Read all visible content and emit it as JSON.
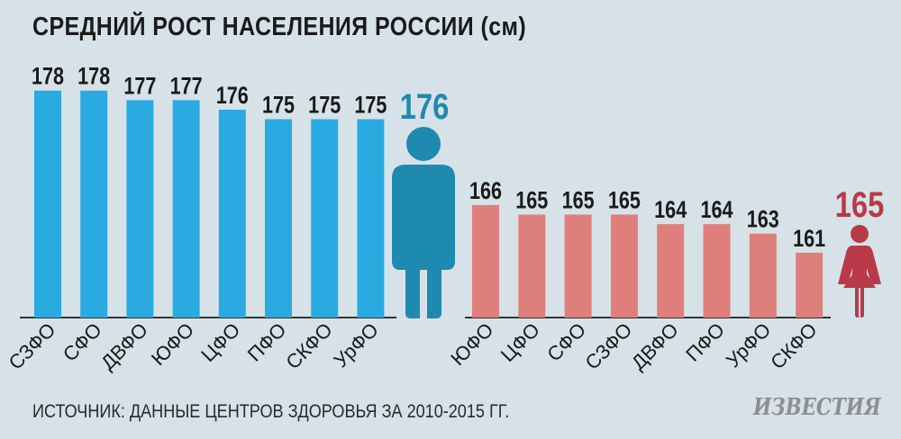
{
  "title": "СРЕДНИЙ РОСТ НАСЕЛЕНИЯ РОССИИ (см)",
  "source": "ИСТОЧНИК: ДАННЫЕ ЦЕНТРОВ ЗДОРОВЬЯ ЗА 2010-2015 ГГ.",
  "logo": "ИЗВЕСТИЯ",
  "colors": {
    "men_bar": "#29abe2",
    "men_figure": "#1f8ab0",
    "women_bar": "#df7f7c",
    "women_figure": "#b83a48",
    "men_avg_text": "#1f8ab0",
    "women_avg_text": "#b83a48"
  },
  "chart_data": [
    {
      "type": "bar",
      "group": "men",
      "categories": [
        "СЗФО",
        "СФО",
        "ДВФО",
        "ЮФО",
        "ЦФО",
        "ПФО",
        "СКФО",
        "УрФО"
      ],
      "values": [
        178,
        178,
        177,
        177,
        176,
        175,
        175,
        175
      ],
      "average": 176,
      "figure_icon": "man-icon"
    },
    {
      "type": "bar",
      "group": "women",
      "categories": [
        "ЮФО",
        "ЦФО",
        "СФО",
        "СЗФО",
        "ДВФО",
        "ПФО",
        "УрФО",
        "СКФО"
      ],
      "values": [
        166,
        165,
        165,
        165,
        164,
        164,
        163,
        161
      ],
      "average": 165,
      "figure_icon": "woman-icon"
    }
  ]
}
